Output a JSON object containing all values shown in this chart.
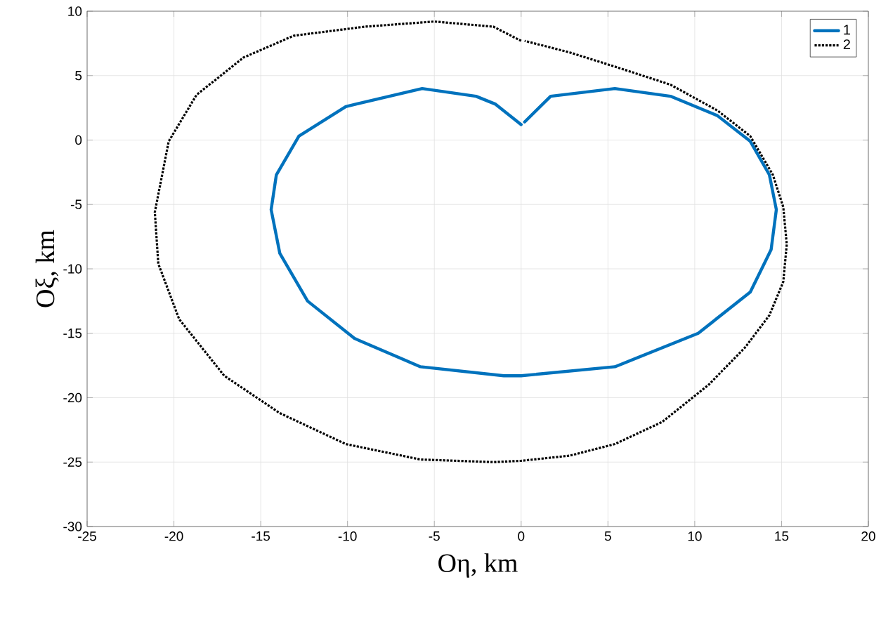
{
  "chart_data": {
    "type": "line",
    "xlabel": "Oη, km",
    "ylabel": "Oξ, km",
    "xlim": [
      -25,
      20
    ],
    "xticks": [
      -25,
      -20,
      -15,
      -10,
      -5,
      0,
      5,
      10,
      15,
      20
    ],
    "ylim": [
      -30,
      10
    ],
    "yticks": [
      -30,
      -25,
      -20,
      -15,
      -10,
      -5,
      0,
      5,
      10
    ],
    "grid": true,
    "legend": "top right",
    "marker": "none",
    "series": [
      {
        "name": "1",
        "color": "#0072bd",
        "line_style": "solid",
        "x": [
          0,
          -1.5,
          -2.6,
          -5.7,
          -10.1,
          -12.8,
          -14.1,
          -14.4,
          -13.9,
          -12.3,
          -9.6,
          -5.8,
          -1.0,
          0,
          5.4,
          10.2,
          13.2,
          14.4,
          14.7,
          14.3,
          13.2,
          11.3,
          8.6,
          5.4,
          1.7,
          0.2
        ],
        "values": [
          1.2,
          2.8,
          3.4,
          4.0,
          2.6,
          0.3,
          -2.7,
          -5.4,
          -8.8,
          -12.5,
          -15.4,
          -17.6,
          -18.3,
          -18.3,
          -17.6,
          -15.0,
          -11.8,
          -8.5,
          -5.4,
          -2.7,
          -0.1,
          1.9,
          3.4,
          4.0,
          3.4,
          1.4
        ]
      },
      {
        "name": "2",
        "color": "#000000",
        "line_style": "dotted",
        "x": [
          0,
          -1.6,
          -5.0,
          -9.0,
          -13.1,
          -16.0,
          -18.7,
          -20.3,
          -21.1,
          -20.9,
          -19.7,
          -17.1,
          -13.9,
          -10.1,
          -5.8,
          -1.6,
          0,
          2.8,
          5.4,
          8.1,
          10.8,
          12.9,
          14.3,
          15.1,
          15.3,
          15.1,
          14.5,
          13.2,
          11.3,
          8.6,
          5.4,
          2.8,
          0.2
        ],
        "values": [
          7.7,
          8.8,
          9.2,
          8.8,
          8.1,
          6.4,
          3.5,
          -0.1,
          -5.6,
          -9.6,
          -13.9,
          -18.3,
          -21.2,
          -23.6,
          -24.8,
          -25.0,
          -24.9,
          -24.5,
          -23.6,
          -21.9,
          -19.0,
          -16.1,
          -13.6,
          -11.0,
          -8.1,
          -5.2,
          -2.7,
          0.3,
          2.3,
          4.3,
          5.7,
          6.8,
          7.7
        ]
      }
    ]
  }
}
